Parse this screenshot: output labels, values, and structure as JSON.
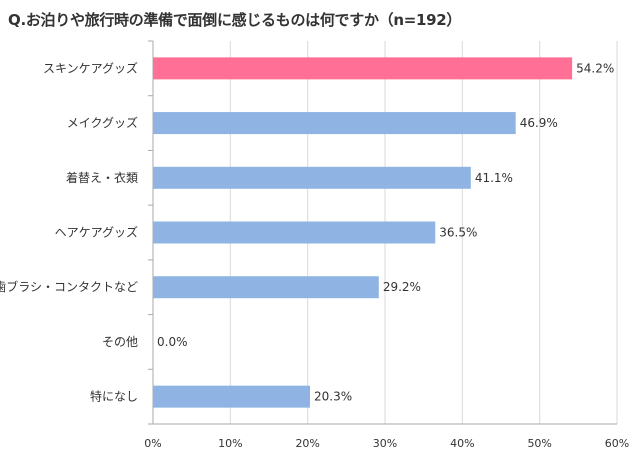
{
  "chart_data": {
    "type": "bar",
    "orientation": "horizontal",
    "title": "Q.お泊りや旅行時の準備で面倒に感じるものは何ですか（n=192）",
    "categories": [
      "スキンケアグッズ",
      "メイクグッズ",
      "着替え・衣類",
      "ヘアケアグッズ",
      "歯ブラシ・コンタクトなど",
      "その他",
      "特になし"
    ],
    "values": [
      54.2,
      46.9,
      41.1,
      36.5,
      29.2,
      0.0,
      20.3
    ],
    "value_labels": [
      "54.2%",
      "46.9%",
      "41.1%",
      "36.5%",
      "29.2%",
      "0.0%",
      "20.3%"
    ],
    "highlight_index": 0,
    "xlim": [
      0,
      60
    ],
    "xticks": [
      "0%",
      "10%",
      "20%",
      "30%",
      "40%",
      "50%",
      "60%"
    ],
    "xlabel": "",
    "ylabel": "",
    "grid": true,
    "colors": {
      "highlight": "#ff6f96",
      "bar": "#8fb4e3",
      "grid": "#d9d9d9",
      "axis": "#aaaaaa",
      "text": "#333333"
    }
  }
}
